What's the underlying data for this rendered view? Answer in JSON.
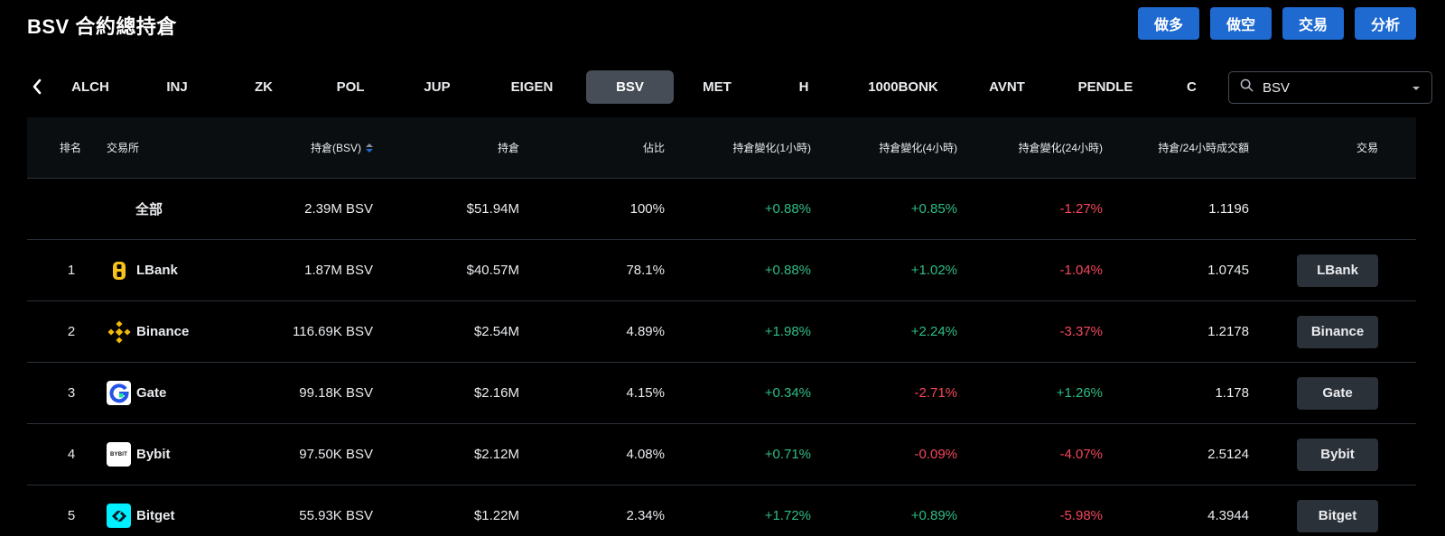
{
  "header": {
    "title": "BSV 合約總持倉"
  },
  "actions": [
    "做多",
    "做空",
    "交易",
    "分析"
  ],
  "tabs": [
    "ALCH",
    "INJ",
    "ZK",
    "POL",
    "JUP",
    "EIGEN",
    "BSV",
    "MET",
    "H",
    "1000BONK",
    "AVNT",
    "PENDLE",
    "C"
  ],
  "active_tab": "BSV",
  "search": {
    "value": "BSV"
  },
  "table": {
    "columns": [
      "排名",
      "交易所",
      "持倉(BSV)",
      "持倉",
      "佔比",
      "持倉變化(1小時)",
      "持倉變化(4小時)",
      "持倉變化(24小時)",
      "持倉/24小時成交額",
      "交易"
    ],
    "total": {
      "exchange": "全部",
      "oi_coin": "2.39M BSV",
      "oi_usd": "$51.94M",
      "share": "100%",
      "ch1h": "+0.88%",
      "ch4h": "+0.85%",
      "ch24h": "-1.27%",
      "ratio": "1.1196"
    },
    "rows": [
      {
        "rank": "1",
        "exchange": "LBank",
        "oi_coin": "1.87M BSV",
        "oi_usd": "$40.57M",
        "share": "78.1%",
        "ch1h": "+0.88%",
        "ch4h": "+1.02%",
        "ch24h": "-1.04%",
        "ratio": "1.0745",
        "trade": "LBank"
      },
      {
        "rank": "2",
        "exchange": "Binance",
        "oi_coin": "116.69K BSV",
        "oi_usd": "$2.54M",
        "share": "4.89%",
        "ch1h": "+1.98%",
        "ch4h": "+2.24%",
        "ch24h": "-3.37%",
        "ratio": "1.2178",
        "trade": "Binance"
      },
      {
        "rank": "3",
        "exchange": "Gate",
        "oi_coin": "99.18K BSV",
        "oi_usd": "$2.16M",
        "share": "4.15%",
        "ch1h": "+0.34%",
        "ch4h": "-2.71%",
        "ch24h": "+1.26%",
        "ratio": "1.178",
        "trade": "Gate"
      },
      {
        "rank": "4",
        "exchange": "Bybit",
        "oi_coin": "97.50K BSV",
        "oi_usd": "$2.12M",
        "share": "4.08%",
        "ch1h": "+0.71%",
        "ch4h": "-0.09%",
        "ch24h": "-4.07%",
        "ratio": "2.5124",
        "trade": "Bybit"
      },
      {
        "rank": "5",
        "exchange": "Bitget",
        "oi_coin": "55.93K BSV",
        "oi_usd": "$1.22M",
        "share": "2.34%",
        "ch1h": "+1.72%",
        "ch4h": "+0.89%",
        "ch24h": "-5.98%",
        "ratio": "4.3944",
        "trade": "Bitget"
      }
    ]
  },
  "logos": {
    "bybit_text": "BYBIT"
  },
  "colors": {
    "accent": "#1f6ad1",
    "positive": "#2ebd85",
    "negative": "#f6465d",
    "tab_active": "#474d57",
    "button": "#2b3139"
  }
}
